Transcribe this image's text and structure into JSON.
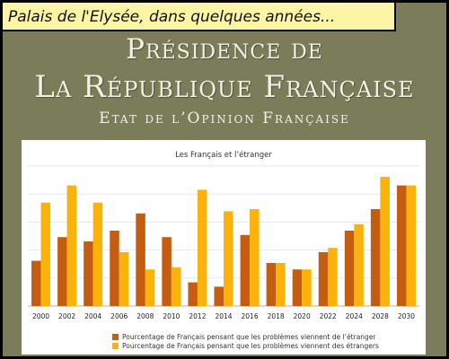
{
  "caption": "Palais de l'Elysée, dans quelques années...",
  "header": {
    "line1": "Présidence de",
    "line2": "La République Française",
    "subtitle": "Etat de l’Opinion Française"
  },
  "colors": {
    "background": "#7b7d5a",
    "caption_bg": "#fcf5a6",
    "series1": "#c45d0f",
    "series2": "#fbb20a"
  },
  "chart_data": {
    "type": "bar",
    "title": "Les Français et l’étranger",
    "categories": [
      "2000",
      "2002",
      "2004",
      "2006",
      "2008",
      "2010",
      "2012",
      "2014",
      "2016",
      "2018",
      "2020",
      "2022",
      "2024",
      "2028",
      "2030"
    ],
    "series": [
      {
        "name": "Pourcentage de Français pensant que les problèmes viennent de l’étranger",
        "values": [
          21,
          32,
          30,
          35,
          43,
          32,
          11,
          9,
          33,
          20,
          17,
          25,
          35,
          45,
          56
        ]
      },
      {
        "name": "Pourcentage de Français pensant que les problèmes viennent des étrangers",
        "values": [
          48,
          56,
          48,
          25,
          17,
          18,
          54,
          44,
          45,
          20,
          17,
          27,
          38,
          60,
          56
        ]
      }
    ],
    "ylim": [
      0,
      65
    ],
    "ylabel": "",
    "xlabel": "",
    "grid": true,
    "legend": "bottom"
  }
}
